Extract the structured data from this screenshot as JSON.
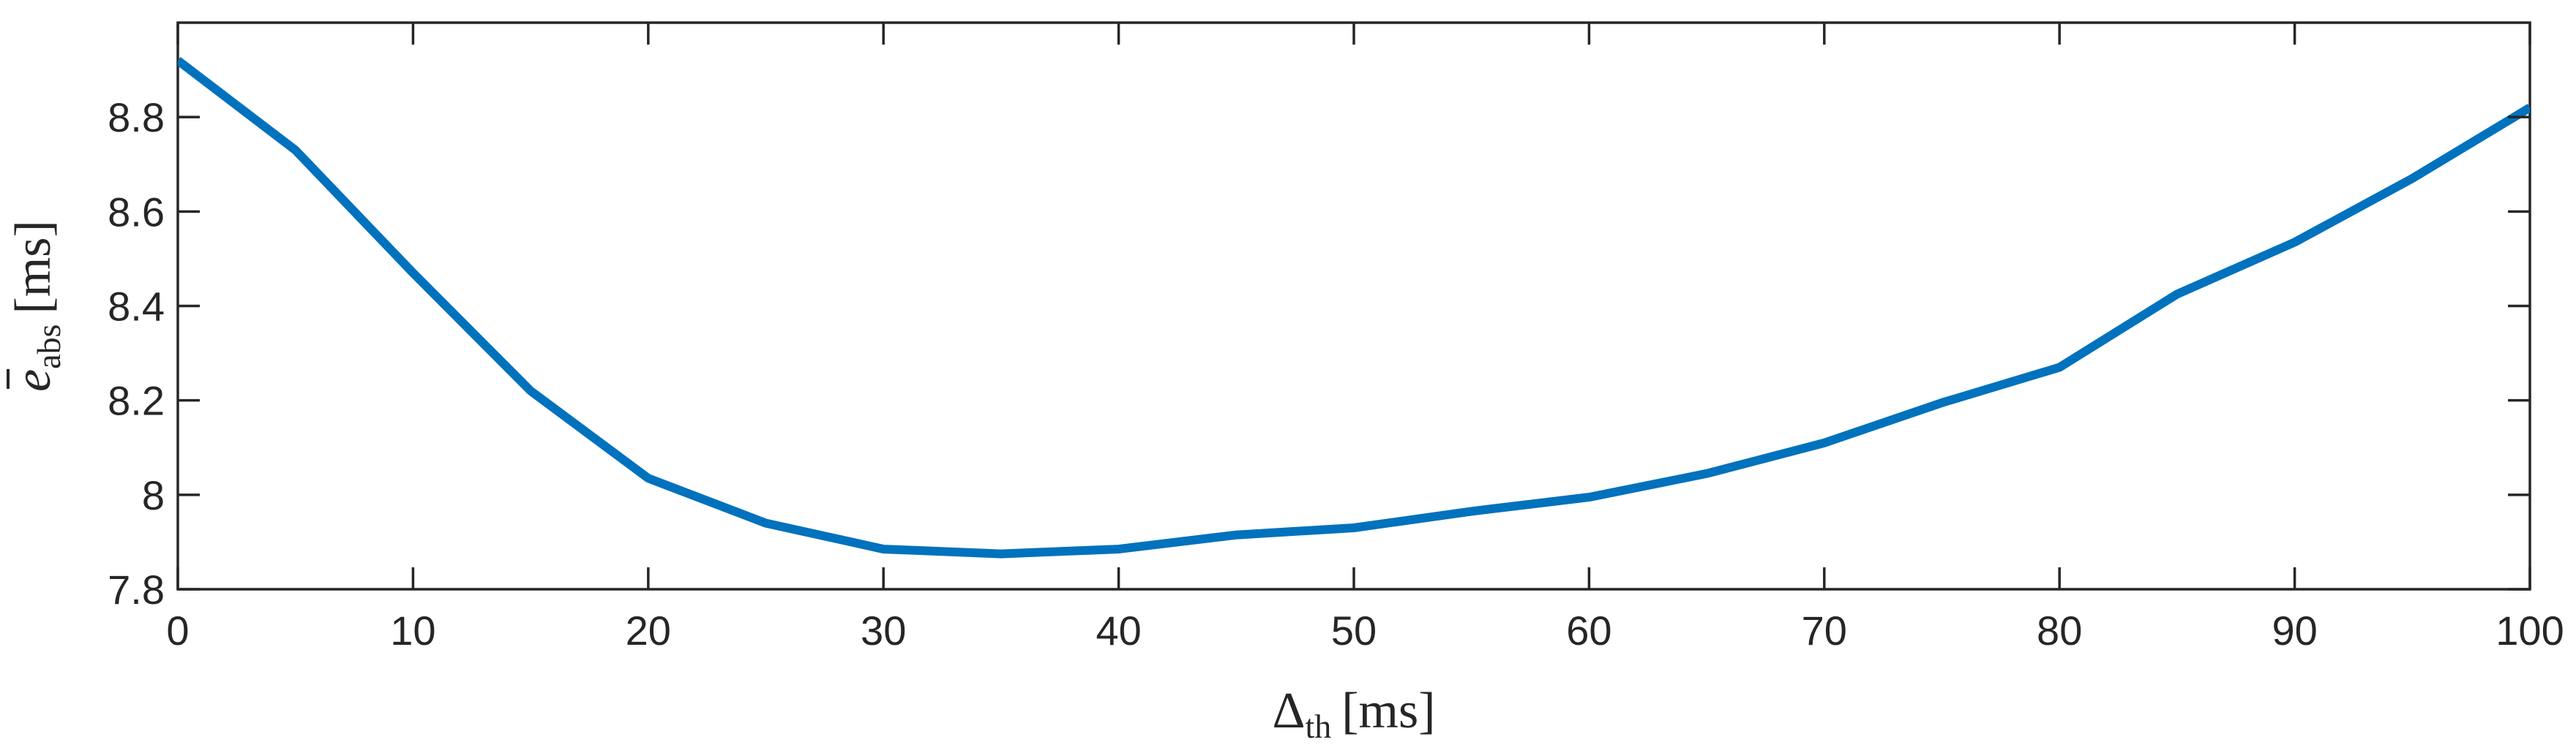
{
  "colors": {
    "series": "#0072BD",
    "axis": "#262626",
    "background": "#ffffff"
  },
  "chart_data": {
    "type": "line",
    "title": "",
    "xlabel": {
      "symbol": "Δ",
      "subscript": "th",
      "unit": "[ms]"
    },
    "ylabel": {
      "symbol": "e",
      "subscript": "abs",
      "unit": "[ms]",
      "overbar": true
    },
    "xlim": [
      0,
      100
    ],
    "ylim": [
      7.8,
      9.0
    ],
    "xticks": [
      0,
      10,
      20,
      30,
      40,
      50,
      60,
      70,
      80,
      90,
      100
    ],
    "xtick_labels": [
      "0",
      "10",
      "20",
      "30",
      "40",
      "50",
      "60",
      "70",
      "80",
      "90",
      "100"
    ],
    "yticks": [
      7.8,
      8.0,
      8.2,
      8.4,
      8.6,
      8.8
    ],
    "ytick_labels": [
      "7.8",
      "8",
      "8.2",
      "8.4",
      "8.6",
      "8.8"
    ],
    "grid": false,
    "box": true,
    "series": [
      {
        "x": [
          0,
          5,
          10,
          15,
          20,
          25,
          30,
          35,
          40,
          45,
          50,
          55,
          60,
          65,
          70,
          75,
          80,
          85,
          90,
          95,
          100
        ],
        "y": [
          8.92,
          8.73,
          8.47,
          8.22,
          8.035,
          7.94,
          7.885,
          7.875,
          7.885,
          7.915,
          7.93,
          7.965,
          7.995,
          8.045,
          8.11,
          8.195,
          8.27,
          8.425,
          8.535,
          8.67,
          8.82
        ]
      }
    ]
  }
}
